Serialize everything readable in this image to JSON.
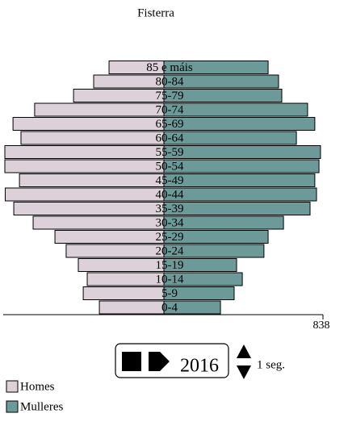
{
  "chart_data": {
    "type": "pyramid",
    "title": "Fisterra",
    "categories": [
      "0-4",
      "5-9",
      "10-14",
      "15-19",
      "20-24",
      "25-29",
      "30-34",
      "35-39",
      "40-44",
      "45-49",
      "50-54",
      "55-59",
      "60-64",
      "65-69",
      "70-74",
      "75-79",
      "80-84",
      "85 e máis"
    ],
    "series": [
      {
        "name": "Homes",
        "color": "#dcd0d9",
        "values": [
          340,
          425,
          404,
          451,
          515,
          574,
          689,
          791,
          836,
          761,
          838,
          838,
          753,
          795,
          681,
          476,
          370,
          289
        ]
      },
      {
        "name": "Mulleres",
        "color": "#6b9a98",
        "values": [
          298,
          370,
          413,
          383,
          527,
          549,
          630,
          770,
          804,
          795,
          817,
          825,
          698,
          795,
          757,
          621,
          604,
          549
        ]
      }
    ],
    "xlim": [
      -838,
      838
    ],
    "xticks": [
      838
    ]
  },
  "controls": {
    "year": "2016",
    "speed": "1 seg."
  }
}
